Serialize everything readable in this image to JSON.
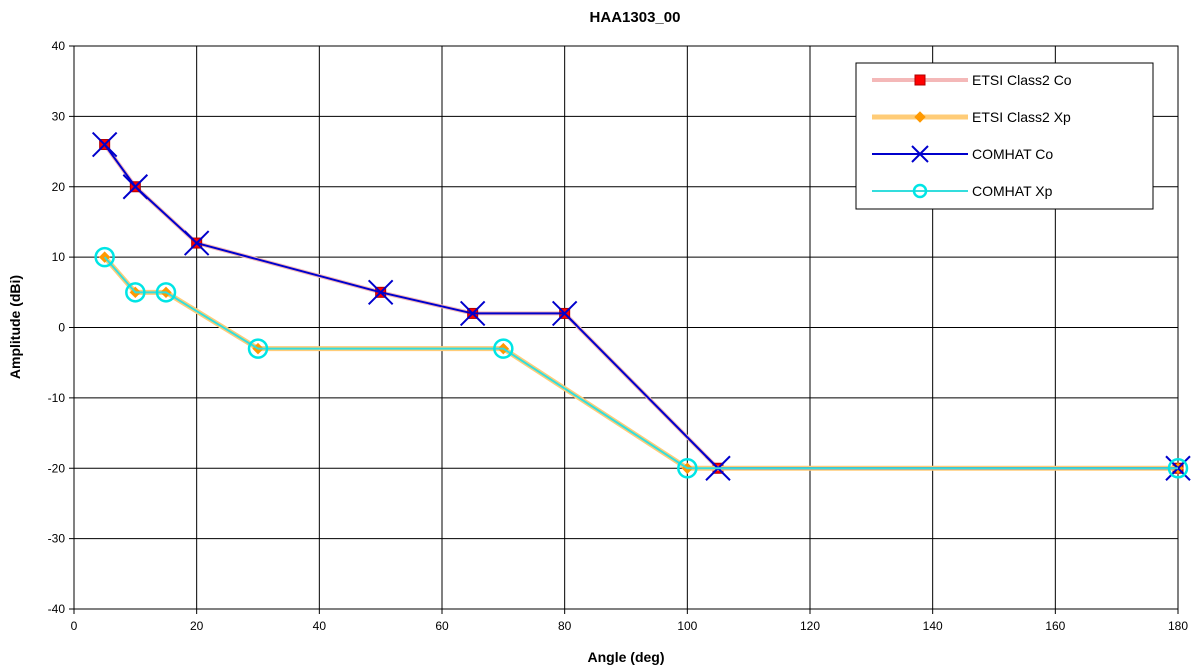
{
  "chart_data": {
    "type": "line",
    "title": "HAA1303_00",
    "xlabel": "Angle (deg)",
    "ylabel": "Amplitude (dBi)",
    "xlim": [
      0,
      180
    ],
    "ylim": [
      -40,
      40
    ],
    "xticks": [
      "0",
      "20",
      "40",
      "60",
      "80",
      "100",
      "120",
      "140",
      "160",
      "180"
    ],
    "yticks": [
      "40",
      "30",
      "20",
      "10",
      "0",
      "-10",
      "-20",
      "-30",
      "-40"
    ],
    "grid": true,
    "legend_position": "top-right",
    "series": [
      {
        "name": "ETSI Class2 Co",
        "color": "#ff0000",
        "line_color": "#f4b8b8",
        "marker": "square",
        "points": [
          [
            5,
            26
          ],
          [
            10,
            20
          ],
          [
            20,
            12
          ],
          [
            50,
            5
          ],
          [
            65,
            2
          ],
          [
            80,
            2
          ],
          [
            105,
            -20
          ],
          [
            180,
            -20
          ]
        ]
      },
      {
        "name": "ETSI Class2 Xp",
        "color": "#ff9900",
        "line_color": "#ffcc77",
        "marker": "diamond",
        "points": [
          [
            5,
            10
          ],
          [
            10,
            5
          ],
          [
            15,
            5
          ],
          [
            30,
            -3
          ],
          [
            70,
            -3
          ],
          [
            100,
            -20
          ],
          [
            180,
            -20
          ]
        ]
      },
      {
        "name": "COMHAT Co",
        "color": "#0000cc",
        "line_color": "#0000cc",
        "marker": "x",
        "points": [
          [
            5,
            26
          ],
          [
            10,
            20
          ],
          [
            20,
            12
          ],
          [
            50,
            5
          ],
          [
            65,
            2
          ],
          [
            80,
            2
          ],
          [
            105,
            -20
          ],
          [
            180,
            -20
          ]
        ]
      },
      {
        "name": "COMHAT Xp",
        "color": "#00e5e5",
        "line_color": "#33dddd",
        "marker": "circle",
        "points": [
          [
            5,
            10
          ],
          [
            10,
            5
          ],
          [
            15,
            5
          ],
          [
            30,
            -3
          ],
          [
            70,
            -3
          ],
          [
            100,
            -20
          ],
          [
            180,
            -20
          ]
        ]
      }
    ]
  }
}
